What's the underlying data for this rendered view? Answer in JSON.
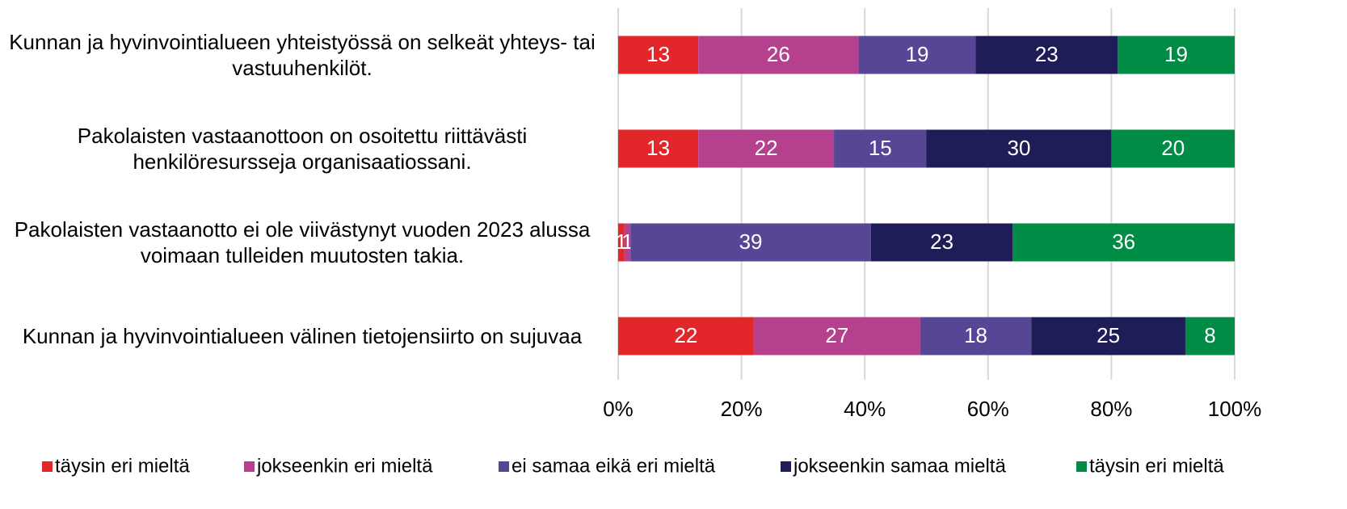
{
  "chart_data": {
    "type": "stacked-bar-horizontal",
    "categories": [
      "Kunnan ja hyvinvointialueen yhteistyössä on selkeät yhteys- tai vastuuhenkilöt.",
      "Pakolaisten vastaanottoon on osoitettu riittävästi henkilöresursseja organisaatiossani.",
      "Pakolaisten vastaanotto ei ole viivästynyt vuoden 2023 alussa voimaan tulleiden muutosten takia.",
      "Kunnan ja hyvinvointialueen välinen tietojensiirto on sujuvaa"
    ],
    "series": [
      {
        "name": "täysin eri mieltä",
        "color": "#e3262a",
        "values": [
          13,
          13,
          1,
          22
        ]
      },
      {
        "name": "jokseenkin eri mieltä",
        "color": "#b5418e",
        "values": [
          26,
          22,
          1,
          27
        ]
      },
      {
        "name": "ei samaa eikä eri mieltä",
        "color": "#574596",
        "values": [
          19,
          15,
          39,
          18
        ]
      },
      {
        "name": "jokseenkin samaa mieltä",
        "color": "#1f1d58",
        "values": [
          23,
          30,
          23,
          25
        ]
      },
      {
        "name": "täysin eri mieltä",
        "color": "#008c45",
        "values": [
          19,
          20,
          36,
          8
        ]
      }
    ],
    "xlim": [
      0,
      100
    ],
    "xticks": [
      {
        "value": 0,
        "label": "0%"
      },
      {
        "value": 20,
        "label": "20%"
      },
      {
        "value": 40,
        "label": "40%"
      },
      {
        "value": 60,
        "label": "60%"
      },
      {
        "value": 80,
        "label": "80%"
      },
      {
        "value": 100,
        "label": "100%"
      }
    ],
    "grid": true,
    "legend": "bottom"
  }
}
